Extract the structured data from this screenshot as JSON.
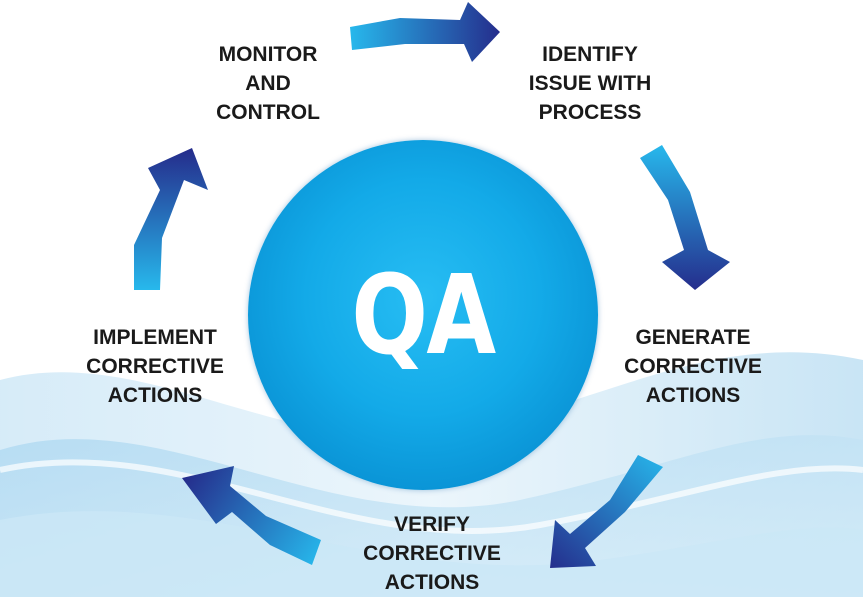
{
  "center": {
    "label": "QA"
  },
  "steps": [
    {
      "id": "identify",
      "label": "IDENTIFY\nISSUE WITH\nPROCESS"
    },
    {
      "id": "generate",
      "label": "GENERATE\nCORRECTIVE\nACTIONS"
    },
    {
      "id": "verify",
      "label": "VERIFY\nCORRECTIVE\nACTIONS"
    },
    {
      "id": "implement",
      "label": "IMPLEMENT\nCORRECTIVE\nACTIONS"
    },
    {
      "id": "monitor",
      "label": "MONITOR\nAND\nCONTROL"
    }
  ],
  "colors": {
    "arrow_dark": "#252d8c",
    "arrow_light": "#27b8ec",
    "circle": "#13aae8",
    "label_text": "#1a1a1a"
  }
}
